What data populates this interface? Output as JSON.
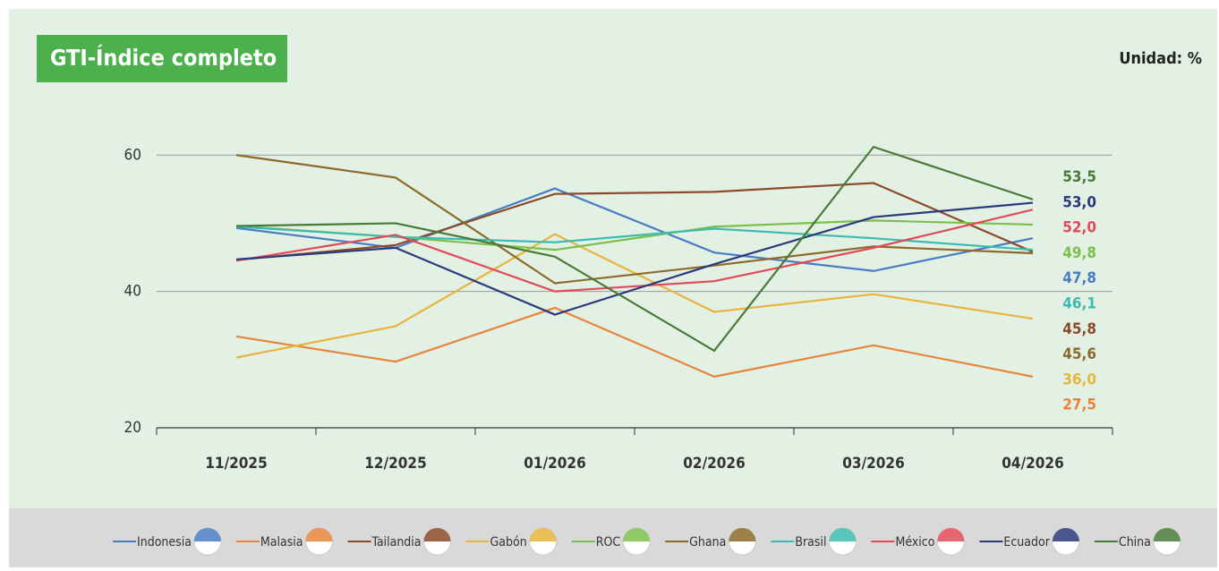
{
  "chart_data": {
    "type": "line",
    "title": "GTI-Índice completo",
    "subtitle": "Unidad: %",
    "categories": [
      "11/2025",
      "12/2025",
      "01/2026",
      "02/2026",
      "03/2026",
      "04/2026"
    ],
    "ylim": [
      20,
      63
    ],
    "yticks": [
      20,
      40,
      60
    ],
    "grid": true,
    "series": [
      {
        "name": "Indonesia",
        "color": "#4a7cc4",
        "values": [
          49.3,
          46.4,
          55.1,
          45.7,
          43.0,
          47.8
        ],
        "value_labels": [
          null,
          null,
          null,
          null,
          null,
          "47,8"
        ]
      },
      {
        "name": "Malasia",
        "color": "#e8843c",
        "values": [
          33.4,
          29.7,
          37.6,
          27.5,
          32.1,
          27.5
        ],
        "value_labels": [
          null,
          null,
          null,
          null,
          null,
          "27,5"
        ]
      },
      {
        "name": "Tailandia",
        "color": "#8b4a2a",
        "values": [
          44.6,
          46.8,
          54.3,
          54.6,
          55.9,
          45.8
        ],
        "value_labels": [
          null,
          null,
          null,
          null,
          null,
          "45,8"
        ]
      },
      {
        "name": "Gabón",
        "color": "#e8b43c",
        "values": [
          30.3,
          34.9,
          48.4,
          37.0,
          39.6,
          36.0
        ],
        "value_labels": [
          null,
          null,
          null,
          null,
          null,
          "36,0"
        ]
      },
      {
        "name": "ROC",
        "color": "#7cbf4a",
        "values": [
          49.6,
          48.0,
          46.1,
          49.5,
          50.4,
          49.8
        ],
        "value_labels": [
          null,
          null,
          null,
          null,
          null,
          "49,8"
        ]
      },
      {
        "name": "Ghana",
        "color": "#8c6a2a",
        "values": [
          60.0,
          56.7,
          41.2,
          43.8,
          46.6,
          45.6
        ],
        "value_labels": [
          null,
          null,
          null,
          null,
          null,
          "45,6"
        ]
      },
      {
        "name": "Brasil",
        "color": "#3cbcb0",
        "values": [
          49.5,
          48.0,
          47.2,
          49.2,
          47.8,
          46.1
        ],
        "value_labels": [
          null,
          null,
          null,
          null,
          null,
          "46,1"
        ]
      },
      {
        "name": "México",
        "color": "#e04a5a",
        "values": [
          44.5,
          48.3,
          40.0,
          41.5,
          46.4,
          52.0
        ],
        "value_labels": [
          null,
          null,
          null,
          null,
          null,
          "52,0"
        ]
      },
      {
        "name": "Ecuador",
        "color": "#2a3a7a",
        "values": [
          44.7,
          46.4,
          36.6,
          44.0,
          50.9,
          53.0
        ],
        "value_labels": [
          null,
          null,
          null,
          null,
          null,
          "53,0"
        ]
      },
      {
        "name": "China",
        "color": "#4a7a3a",
        "values": [
          49.6,
          50.0,
          45.1,
          31.3,
          61.2,
          53.5
        ],
        "value_labels": [
          null,
          null,
          null,
          null,
          null,
          "53,5"
        ]
      }
    ]
  }
}
